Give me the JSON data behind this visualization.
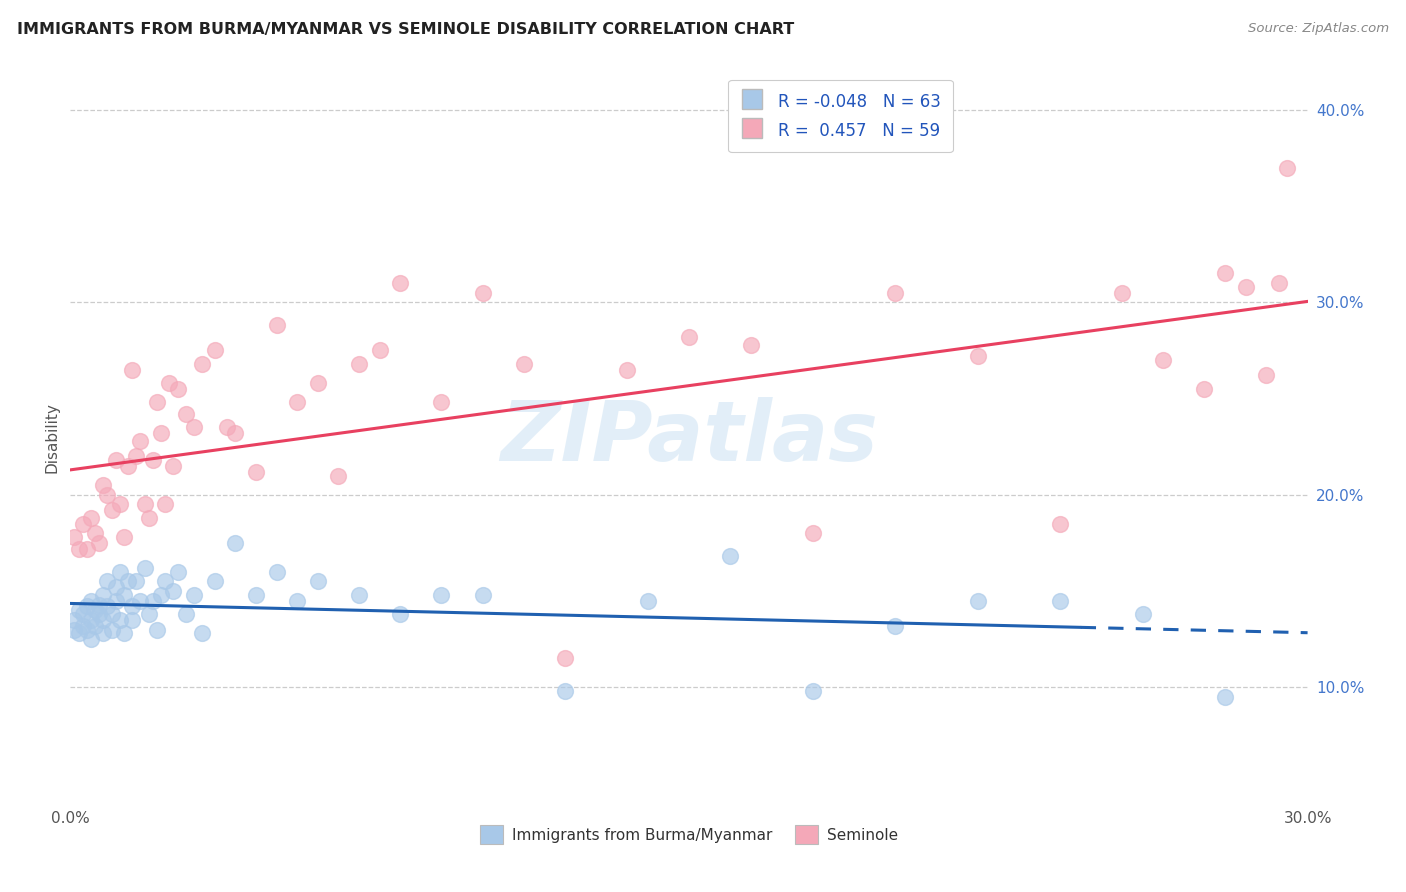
{
  "title": "IMMIGRANTS FROM BURMA/MYANMAR VS SEMINOLE DISABILITY CORRELATION CHART",
  "source": "Source: ZipAtlas.com",
  "ylabel": "Disability",
  "xlim": [
    0.0,
    0.3
  ],
  "ylim": [
    0.04,
    0.42
  ],
  "x_ticks": [
    0.0,
    0.05,
    0.1,
    0.15,
    0.2,
    0.25,
    0.3
  ],
  "y_ticks_right": [
    0.1,
    0.2,
    0.3,
    0.4
  ],
  "legend_r_blue": "-0.048",
  "legend_n_blue": "63",
  "legend_r_pink": "0.457",
  "legend_n_pink": "59",
  "blue_color": "#a8c8e8",
  "pink_color": "#f4a8b8",
  "blue_line_color": "#2060b0",
  "pink_line_color": "#e84060",
  "blue_scatter_x": [
    0.001,
    0.001,
    0.002,
    0.002,
    0.003,
    0.003,
    0.004,
    0.004,
    0.005,
    0.005,
    0.005,
    0.006,
    0.006,
    0.007,
    0.007,
    0.008,
    0.008,
    0.008,
    0.009,
    0.009,
    0.01,
    0.01,
    0.011,
    0.011,
    0.012,
    0.012,
    0.013,
    0.013,
    0.014,
    0.015,
    0.015,
    0.016,
    0.017,
    0.018,
    0.019,
    0.02,
    0.021,
    0.022,
    0.023,
    0.025,
    0.026,
    0.028,
    0.03,
    0.032,
    0.035,
    0.04,
    0.045,
    0.05,
    0.055,
    0.06,
    0.07,
    0.08,
    0.09,
    0.1,
    0.12,
    0.14,
    0.16,
    0.18,
    0.2,
    0.22,
    0.24,
    0.26,
    0.28
  ],
  "blue_scatter_y": [
    0.135,
    0.13,
    0.128,
    0.14,
    0.132,
    0.138,
    0.13,
    0.142,
    0.125,
    0.135,
    0.145,
    0.132,
    0.14,
    0.138,
    0.143,
    0.135,
    0.148,
    0.128,
    0.155,
    0.142,
    0.138,
    0.13,
    0.145,
    0.152,
    0.135,
    0.16,
    0.128,
    0.148,
    0.155,
    0.135,
    0.142,
    0.155,
    0.145,
    0.162,
    0.138,
    0.145,
    0.13,
    0.148,
    0.155,
    0.15,
    0.16,
    0.138,
    0.148,
    0.128,
    0.155,
    0.175,
    0.148,
    0.16,
    0.145,
    0.155,
    0.148,
    0.138,
    0.148,
    0.148,
    0.098,
    0.145,
    0.168,
    0.098,
    0.132,
    0.145,
    0.145,
    0.138,
    0.095
  ],
  "pink_scatter_x": [
    0.001,
    0.002,
    0.003,
    0.004,
    0.005,
    0.006,
    0.007,
    0.008,
    0.009,
    0.01,
    0.011,
    0.012,
    0.013,
    0.014,
    0.015,
    0.016,
    0.017,
    0.018,
    0.019,
    0.02,
    0.021,
    0.022,
    0.023,
    0.024,
    0.025,
    0.026,
    0.028,
    0.03,
    0.032,
    0.035,
    0.038,
    0.04,
    0.045,
    0.05,
    0.055,
    0.06,
    0.065,
    0.07,
    0.075,
    0.08,
    0.09,
    0.1,
    0.11,
    0.12,
    0.135,
    0.15,
    0.165,
    0.18,
    0.2,
    0.22,
    0.24,
    0.255,
    0.265,
    0.275,
    0.28,
    0.285,
    0.29,
    0.293,
    0.295
  ],
  "pink_scatter_y": [
    0.178,
    0.172,
    0.185,
    0.172,
    0.188,
    0.18,
    0.175,
    0.205,
    0.2,
    0.192,
    0.218,
    0.195,
    0.178,
    0.215,
    0.265,
    0.22,
    0.228,
    0.195,
    0.188,
    0.218,
    0.248,
    0.232,
    0.195,
    0.258,
    0.215,
    0.255,
    0.242,
    0.235,
    0.268,
    0.275,
    0.235,
    0.232,
    0.212,
    0.288,
    0.248,
    0.258,
    0.21,
    0.268,
    0.275,
    0.31,
    0.248,
    0.305,
    0.268,
    0.115,
    0.265,
    0.282,
    0.278,
    0.18,
    0.305,
    0.272,
    0.185,
    0.305,
    0.27,
    0.255,
    0.315,
    0.308,
    0.262,
    0.31,
    0.37
  ],
  "watermark": "ZIPatlas",
  "background_color": "#ffffff",
  "grid_color": "#cccccc"
}
